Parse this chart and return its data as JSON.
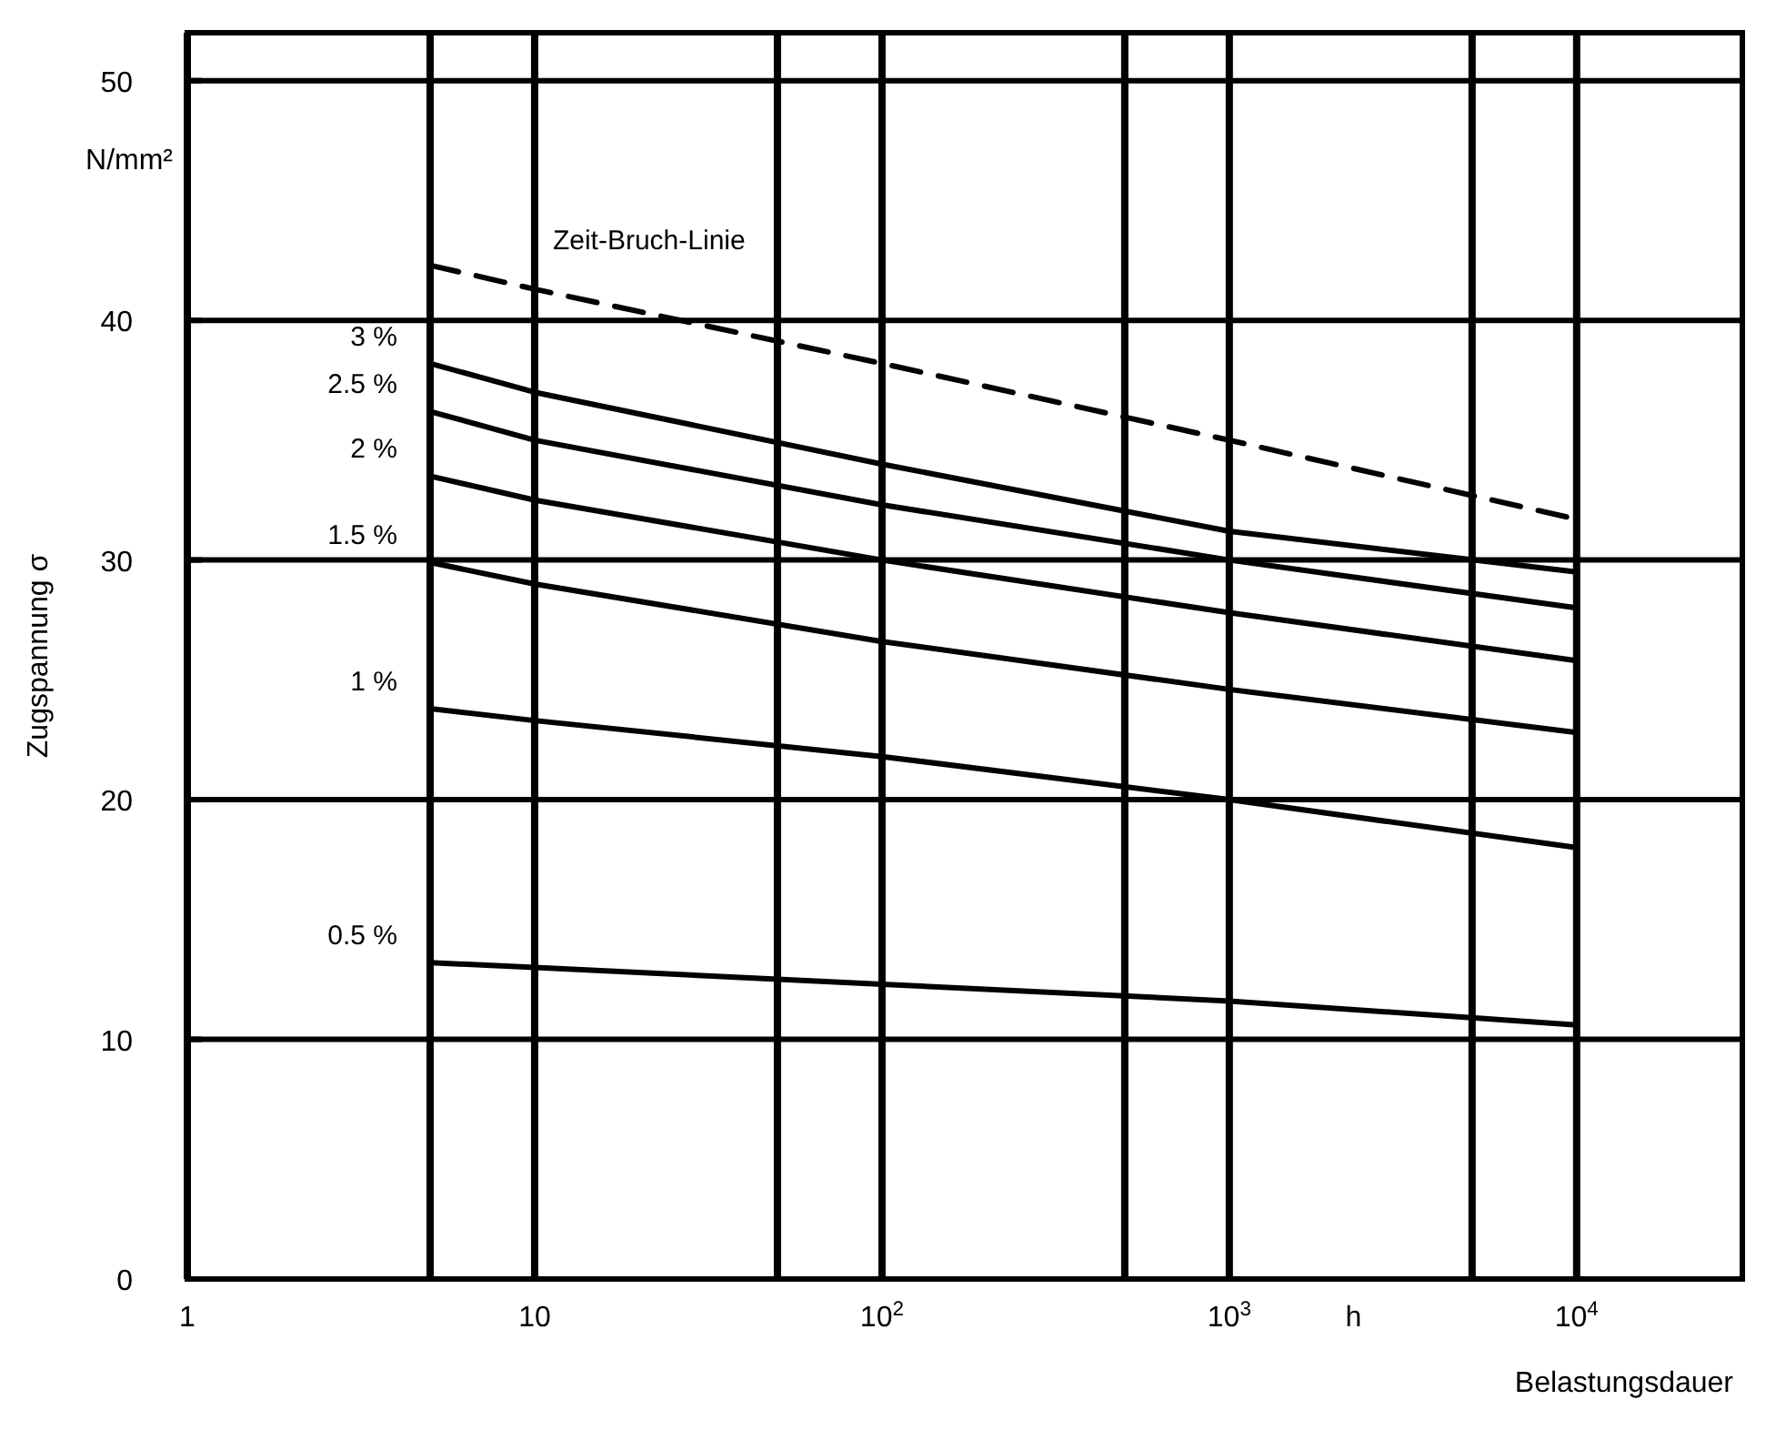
{
  "chart_data": {
    "type": "line",
    "xlabel": "Belastungsdauer",
    "ylabel": "Zugspannung σ",
    "annotations": [
      "N/mm²",
      "h"
    ],
    "log": "x",
    "xlim": [
      1,
      30000
    ],
    "ylim": [
      0,
      52
    ],
    "xticks": [
      1,
      {
        "value": 5,
        "label": null
      },
      10,
      {
        "value": 50,
        "label": null
      },
      {
        "value": 100,
        "label": "10$^{2}$"
      },
      {
        "value": 500,
        "label": null
      },
      {
        "value": 1000,
        "label": "10$^{3}$"
      },
      {
        "value": 5000,
        "label": null
      },
      {
        "value": 10000,
        "label": "10$^{4}$"
      }
    ],
    "yticks": [
      0,
      10,
      20,
      30,
      40,
      50
    ],
    "grid": true,
    "marker": "none",
    "x": [
      5,
      10,
      100,
      1000,
      10000
    ],
    "series": [
      {
        "name": "Zeit-Bruch-Linie",
        "color": "#000000",
        "line_style": "dashed",
        "values": [
          42.3,
          41.3,
          38.2,
          35.0,
          31.7
        ]
      },
      {
        "name": "3 %",
        "color": "#000000",
        "values": [
          38.2,
          37.0,
          34.0,
          31.2,
          29.5
        ]
      },
      {
        "name": "2.5 %",
        "color": "#000000",
        "values": [
          36.2,
          35.0,
          32.3,
          30.0,
          28.0
        ]
      },
      {
        "name": "2 %",
        "color": "#000000",
        "values": [
          33.5,
          32.5,
          30.0,
          27.8,
          25.8
        ]
      },
      {
        "name": "1.5 %",
        "color": "#000000",
        "values": [
          29.9,
          29.0,
          26.6,
          24.6,
          22.8
        ]
      },
      {
        "name": "1 %",
        "color": "#000000",
        "values": [
          23.8,
          23.3,
          21.8,
          20.0,
          18.0
        ]
      },
      {
        "name": "0.5 %",
        "color": "#000000",
        "values": [
          13.2,
          13.0,
          12.3,
          11.6,
          10.6
        ]
      }
    ]
  }
}
